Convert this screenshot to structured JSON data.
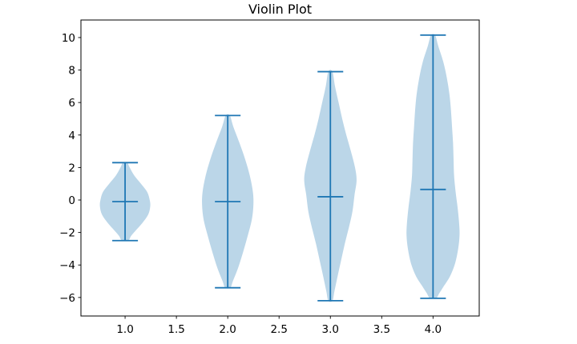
{
  "title": "Violin Plot",
  "colors": {
    "accent": "#1f77b4",
    "violin_fill": "#1f77b4",
    "violin_fill_opacity": 0.3,
    "violin_fill_effective": "#bcd6e8",
    "axis": "#000000",
    "background": "#ffffff"
  },
  "axes": {
    "x_ticks": [
      {
        "value": 1.0,
        "label": "1.0"
      },
      {
        "value": 1.5,
        "label": "1.5"
      },
      {
        "value": 2.0,
        "label": "2.0"
      },
      {
        "value": 2.5,
        "label": "2.5"
      },
      {
        "value": 3.0,
        "label": "3.0"
      },
      {
        "value": 3.5,
        "label": "3.5"
      },
      {
        "value": 4.0,
        "label": "4.0"
      }
    ],
    "y_ticks": [
      {
        "value": 10,
        "label": "10"
      },
      {
        "value": 8,
        "label": "8"
      },
      {
        "value": 6,
        "label": "6"
      },
      {
        "value": 4,
        "label": "4"
      },
      {
        "value": 2,
        "label": "2"
      },
      {
        "value": 0,
        "label": "0"
      },
      {
        "value": -2,
        "label": "−2"
      },
      {
        "value": -4,
        "label": "−4"
      },
      {
        "value": -6,
        "label": "−6"
      }
    ]
  },
  "chart_data": {
    "type": "violin",
    "title": "Violin Plot",
    "xlabel": "",
    "ylabel": "",
    "xlim": [
      0.57,
      4.45
    ],
    "ylim": [
      -7.14,
      11.08
    ],
    "grid": false,
    "legend": null,
    "positions": [
      1,
      2,
      3,
      4
    ],
    "cap_halfwidth": 0.125,
    "series": [
      {
        "name": "violin-1",
        "position": 1,
        "min": -2.5,
        "max": 2.3,
        "mean": -0.1,
        "profile": [
          [
            2.3,
            0.02
          ],
          [
            2.0,
            0.045
          ],
          [
            1.5,
            0.09
          ],
          [
            1.0,
            0.155
          ],
          [
            0.5,
            0.215
          ],
          [
            0.0,
            0.24
          ],
          [
            -0.4,
            0.245
          ],
          [
            -0.9,
            0.225
          ],
          [
            -1.4,
            0.17
          ],
          [
            -1.9,
            0.1
          ],
          [
            -2.2,
            0.06
          ],
          [
            -2.5,
            0.03
          ]
        ]
      },
      {
        "name": "violin-2",
        "position": 2,
        "min": -5.4,
        "max": 5.2,
        "mean": -0.1,
        "profile": [
          [
            5.2,
            0.02
          ],
          [
            4.5,
            0.055
          ],
          [
            3.5,
            0.115
          ],
          [
            2.5,
            0.17
          ],
          [
            1.5,
            0.215
          ],
          [
            0.5,
            0.245
          ],
          [
            -0.3,
            0.25
          ],
          [
            -1.2,
            0.235
          ],
          [
            -2.2,
            0.195
          ],
          [
            -3.2,
            0.15
          ],
          [
            -4.2,
            0.1
          ],
          [
            -5.0,
            0.05
          ],
          [
            -5.4,
            0.025
          ]
        ]
      },
      {
        "name": "violin-3",
        "position": 3,
        "min": -6.2,
        "max": 7.9,
        "mean": 0.2,
        "profile": [
          [
            7.9,
            0.02
          ],
          [
            7.0,
            0.045
          ],
          [
            6.0,
            0.08
          ],
          [
            5.0,
            0.115
          ],
          [
            4.0,
            0.155
          ],
          [
            3.0,
            0.2
          ],
          [
            2.0,
            0.24
          ],
          [
            1.2,
            0.255
          ],
          [
            0.3,
            0.235
          ],
          [
            -0.7,
            0.215
          ],
          [
            -1.7,
            0.18
          ],
          [
            -2.7,
            0.14
          ],
          [
            -3.7,
            0.105
          ],
          [
            -4.7,
            0.07
          ],
          [
            -5.6,
            0.04
          ],
          [
            -6.2,
            0.02
          ]
        ]
      },
      {
        "name": "violin-4",
        "position": 4,
        "min": -6.05,
        "max": 10.15,
        "mean": 0.65,
        "profile": [
          [
            10.15,
            0.02
          ],
          [
            9.5,
            0.05
          ],
          [
            8.5,
            0.1
          ],
          [
            7.5,
            0.135
          ],
          [
            6.5,
            0.16
          ],
          [
            5.5,
            0.175
          ],
          [
            4.5,
            0.185
          ],
          [
            3.5,
            0.195
          ],
          [
            2.5,
            0.2
          ],
          [
            1.5,
            0.205
          ],
          [
            0.5,
            0.22
          ],
          [
            -0.5,
            0.24
          ],
          [
            -1.5,
            0.255
          ],
          [
            -2.2,
            0.258
          ],
          [
            -3.0,
            0.245
          ],
          [
            -3.9,
            0.215
          ],
          [
            -4.7,
            0.165
          ],
          [
            -5.3,
            0.105
          ],
          [
            -5.75,
            0.06
          ],
          [
            -6.05,
            0.03
          ]
        ]
      }
    ]
  }
}
